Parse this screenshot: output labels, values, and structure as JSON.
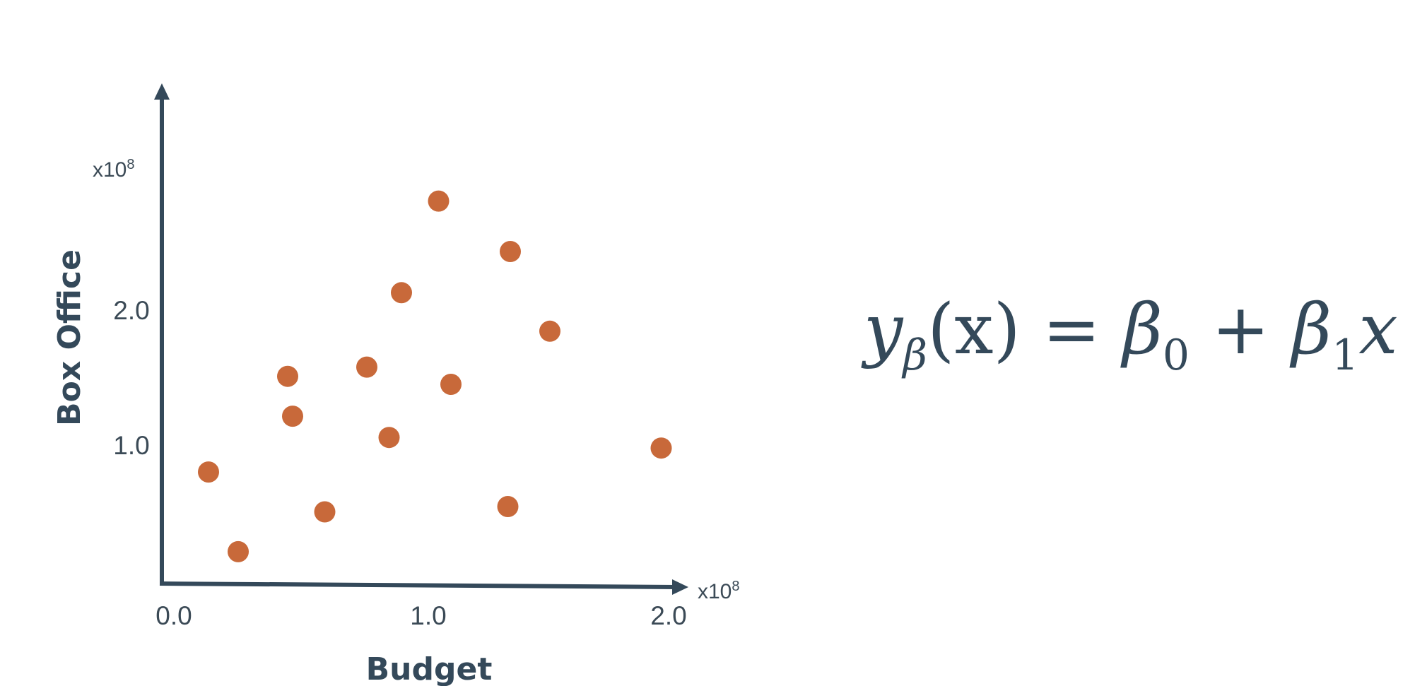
{
  "chart_data": {
    "type": "scatter",
    "xlabel": "Budget",
    "ylabel": "Box Office",
    "x_multiplier": "x10",
    "x_multiplier_exp": "8",
    "y_multiplier": "x10",
    "y_multiplier_exp": "8",
    "x_ticks": [
      "0.0",
      "1.0",
      "2.0"
    ],
    "y_ticks": [
      "1.0",
      "2.0"
    ],
    "xlim": [
      0.0,
      2.0
    ],
    "ylim": [
      0.0,
      3.5
    ],
    "grid": false,
    "point_color": "#c8693a",
    "axis_color": "#34495a",
    "points": [
      {
        "x": 0.14,
        "y": 0.84
      },
      {
        "x": 0.26,
        "y": 0.24
      },
      {
        "x": 0.46,
        "y": 1.56
      },
      {
        "x": 0.48,
        "y": 1.26
      },
      {
        "x": 0.61,
        "y": 0.54
      },
      {
        "x": 0.78,
        "y": 1.63
      },
      {
        "x": 0.87,
        "y": 1.1
      },
      {
        "x": 0.92,
        "y": 2.19
      },
      {
        "x": 1.07,
        "y": 2.88
      },
      {
        "x": 1.12,
        "y": 1.5
      },
      {
        "x": 1.35,
        "y": 0.58
      },
      {
        "x": 1.36,
        "y": 2.5
      },
      {
        "x": 1.52,
        "y": 1.9
      },
      {
        "x": 1.97,
        "y": 1.02
      }
    ]
  },
  "formula": {
    "y": "y",
    "y_sub": "β",
    "arg": "(x) = ",
    "b0": "β",
    "b0_sub": "0",
    "plus": " + ",
    "b1": "β",
    "b1_sub": "1",
    "x": "x"
  }
}
